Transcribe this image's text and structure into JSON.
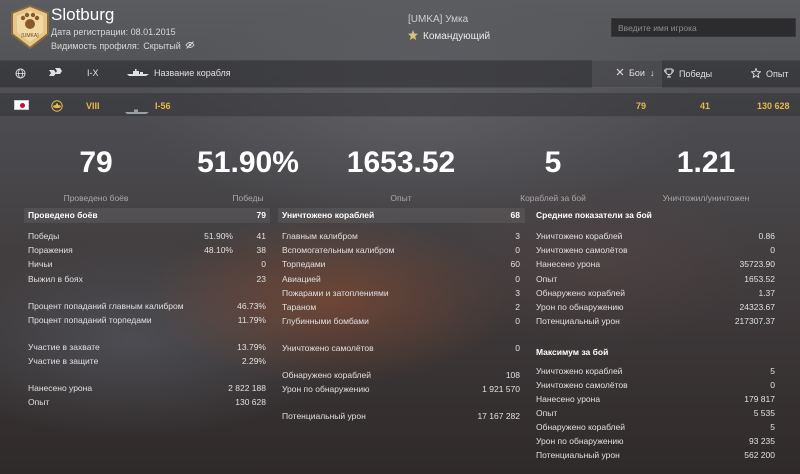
{
  "profile": {
    "player_name": "Slotburg",
    "reg_label": "Дата регистрации: 08.01.2015",
    "visibility_label": "Видимость профиля:",
    "visibility_value": "Скрытый",
    "emblem_text": "[UMKA]",
    "clan": "[UMKA] Умка",
    "role": "Командующий"
  },
  "search": {
    "placeholder": "Введите имя игрока"
  },
  "columns": {
    "tier": "I-X",
    "ship_name": "Название корабля",
    "battles": "Бои",
    "wins": "Победы",
    "exp": "Опыт"
  },
  "ship": {
    "tier": "VIII",
    "name": "I-56",
    "battles": "79",
    "wins": "41",
    "exp": "130 628"
  },
  "summary": [
    {
      "value": "79",
      "label": "Проведено боёв"
    },
    {
      "value": "51.90%",
      "label": "Победы"
    },
    {
      "value": "1653.52",
      "label": "Опыт"
    },
    {
      "value": "5",
      "label": "Кораблей за бой"
    },
    {
      "value": "1.21",
      "label": "Уничтожил/уничтожен"
    }
  ],
  "col1": {
    "title": "Проведено боёв",
    "title_value": "79",
    "rows": [
      {
        "label": "Победы",
        "pct": "51.90%",
        "value": "41"
      },
      {
        "label": "Поражения",
        "pct": "48.10%",
        "value": "38"
      },
      {
        "label": "Ничьи",
        "pct": "",
        "value": "0"
      },
      {
        "label": "Выжил в боях",
        "pct": "",
        "value": "23"
      },
      {
        "label": "Процент попаданий главным калибром",
        "pct": "",
        "value": "46.73%"
      },
      {
        "label": "Процент попаданий торпедами",
        "pct": "",
        "value": "11.79%"
      },
      {
        "label": "Участие в захвате",
        "pct": "",
        "value": "13.79%"
      },
      {
        "label": "Участие в защите",
        "pct": "",
        "value": "2.29%"
      },
      {
        "label": "Нанесено урона",
        "pct": "",
        "value": "2 822 188"
      },
      {
        "label": "Опыт",
        "pct": "",
        "value": "130 628"
      }
    ]
  },
  "col2": {
    "title": "Уничтожено кораблей",
    "title_value": "68",
    "rows": [
      {
        "label": "Главным калибром",
        "value": "3"
      },
      {
        "label": "Вспомогательным калибром",
        "value": "0"
      },
      {
        "label": "Торпедами",
        "value": "60"
      },
      {
        "label": "Авиацией",
        "value": "0"
      },
      {
        "label": "Пожарами и затоплениями",
        "value": "3"
      },
      {
        "label": "Тараном",
        "value": "2"
      },
      {
        "label": "Глубинными бомбами",
        "value": "0"
      },
      {
        "label": "Уничтожено самолётов",
        "value": "0"
      },
      {
        "label": "Обнаружено кораблей",
        "value": "108"
      },
      {
        "label": "Урон по обнаружению",
        "value": "1 921 570"
      },
      {
        "label": "Потенциальный урон",
        "value": "17 167 282"
      }
    ]
  },
  "col3": {
    "avg_title": "Средние показатели за бой",
    "avg_rows": [
      {
        "label": "Уничтожено кораблей",
        "value": "0.86"
      },
      {
        "label": "Уничтожено самолётов",
        "value": "0"
      },
      {
        "label": "Нанесено урона",
        "value": "35723.90"
      },
      {
        "label": "Опыт",
        "value": "1653.52"
      },
      {
        "label": "Обнаружено кораблей",
        "value": "1.37"
      },
      {
        "label": "Урон по обнаружению",
        "value": "24323.67"
      },
      {
        "label": "Потенциальный урон",
        "value": "217307.37"
      }
    ],
    "max_title": "Максимум за бой",
    "max_rows": [
      {
        "label": "Уничтожено кораблей",
        "value": "5"
      },
      {
        "label": "Уничтожено самолётов",
        "value": "0"
      },
      {
        "label": "Нанесено урона",
        "value": "179 817"
      },
      {
        "label": "Опыт",
        "value": "5 535"
      },
      {
        "label": "Обнаружено кораблей",
        "value": "5"
      },
      {
        "label": "Урон по обнаружению",
        "value": "93 235"
      },
      {
        "label": "Потенциальный урон",
        "value": "562 200"
      }
    ]
  },
  "colors": {
    "accent_gold": "#e6b84a",
    "japan_red": "#c8102e"
  },
  "icons": {
    "nation": "globe-icon",
    "type": "ship-type-icon",
    "class": "ship-silhouette-icon",
    "wins": "trophy-icon",
    "exp": "star-icon",
    "hidden": "eye-slash-icon",
    "role": "commander-icon"
  }
}
